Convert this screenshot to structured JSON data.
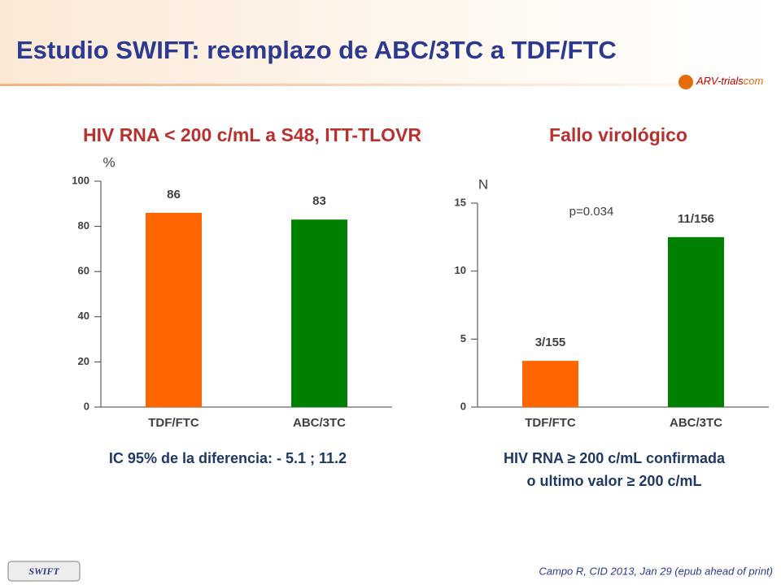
{
  "title": "Estudio SWIFT: reemplazo de ABC/3TC a TDF/FTC",
  "logo": {
    "brand": "ARV-trials",
    "suffix": "com"
  },
  "badge": "SWIFT",
  "citation": "Campo R, CID 2013, Jan 29 (epub ahead of print)",
  "chart_data": [
    {
      "type": "bar",
      "title": "HIV RNA < 200 c/mL a S48, ITT-TLOVR",
      "y_label": "%",
      "categories": [
        "TDF/FTC",
        "ABC/3TC"
      ],
      "values": [
        86,
        83
      ],
      "colors": [
        "#ff6600",
        "#008000"
      ],
      "ylim": [
        0,
        100
      ],
      "yticks": [
        0,
        20,
        40,
        60,
        80,
        100
      ],
      "note": [
        "IC 95% de la diferencia: - 5.1 ; 11.2"
      ]
    },
    {
      "type": "bar",
      "title": "Fallo virológico",
      "y_label": "N",
      "categories": [
        "TDF/FTC",
        "ABC/3TC"
      ],
      "values": [
        3.4,
        12.5
      ],
      "colors": [
        "#ff6600",
        "#008000"
      ],
      "bar_annotations": [
        "3/155",
        "11/156"
      ],
      "annotation": "p=0.034",
      "ylim": [
        0,
        15
      ],
      "yticks": [
        0,
        5,
        10,
        15
      ],
      "note": [
        "HIV RNA ≥ 200 c/mL confirmada",
        "o ultimo valor  ≥ 200 c/mL"
      ]
    }
  ]
}
